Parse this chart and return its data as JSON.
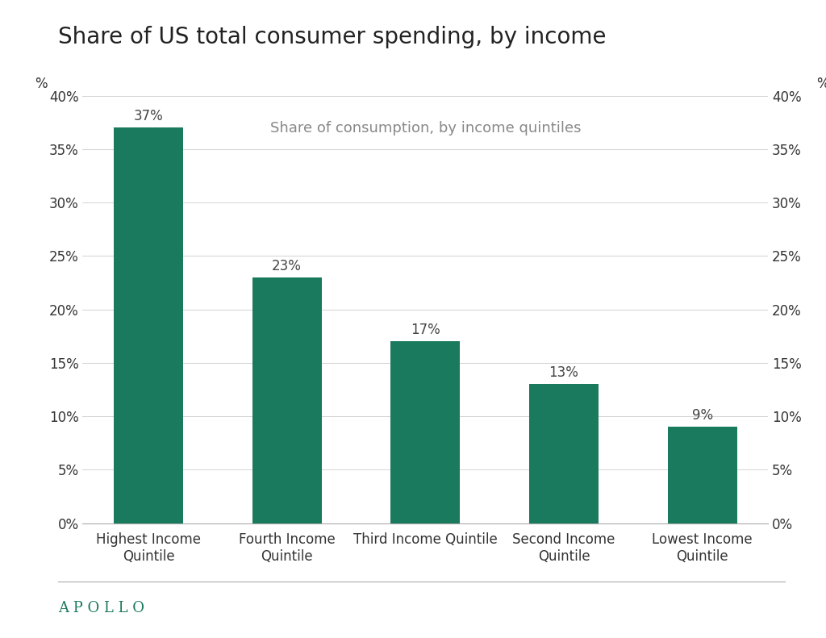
{
  "title": "Share of US total consumer spending, by income",
  "subtitle": "Share of consumption, by income quintiles",
  "categories": [
    "Highest Income\nQuintile",
    "Fourth Income\nQuintile",
    "Third Income Quintile",
    "Second Income\nQuintile",
    "Lowest Income\nQuintile"
  ],
  "values": [
    37,
    23,
    17,
    13,
    9
  ],
  "bar_color": "#1a7a5e",
  "bar_width": 0.5,
  "ylim": [
    0,
    40
  ],
  "yticks": [
    0,
    5,
    10,
    15,
    20,
    25,
    30,
    35,
    40
  ],
  "ylabel_left": "%",
  "ylabel_right": "%",
  "background_color": "#ffffff",
  "title_fontsize": 20,
  "subtitle_fontsize": 13,
  "tick_label_fontsize": 12,
  "value_label_fontsize": 12,
  "apollo_color": "#1a7a5e",
  "apollo_text": "A P O L L O",
  "apollo_fontsize": 13,
  "grid_color": "#cccccc",
  "axis_color": "#aaaaaa"
}
